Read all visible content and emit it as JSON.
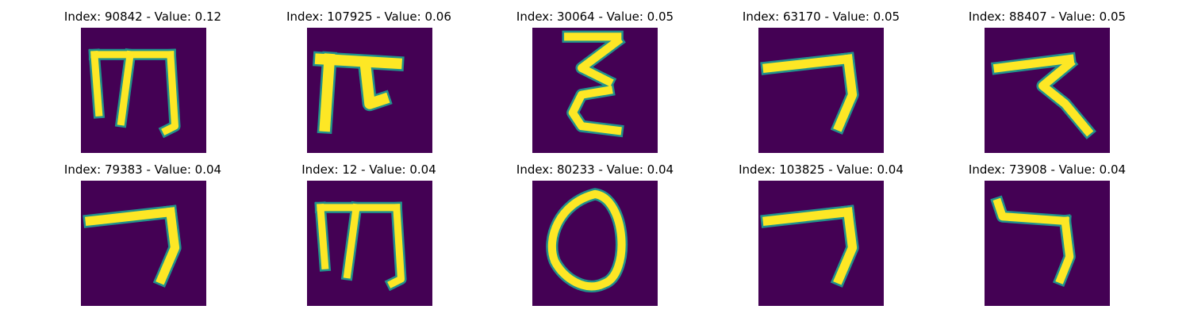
{
  "colors": {
    "background_cell": "#440154",
    "stroke_core": "#fde725",
    "stroke_edge": "#21918c"
  },
  "panels": [
    {
      "title": "Index: 90842 - Value: 0.12",
      "glyph": "glyph-m-shape"
    },
    {
      "title": "Index: 107925 - Value: 0.06",
      "glyph": "glyph-m-thick"
    },
    {
      "title": "Index: 30064 - Value: 0.05",
      "glyph": "glyph-z-stack"
    },
    {
      "title": "Index: 63170 - Value: 0.05",
      "glyph": "glyph-hook-right"
    },
    {
      "title": "Index: 88407 - Value: 0.05",
      "glyph": "glyph-z-wave"
    },
    {
      "title": "Index: 79383 - Value: 0.04",
      "glyph": "glyph-hook-right"
    },
    {
      "title": "Index: 12 - Value: 0.04",
      "glyph": "glyph-m-shape"
    },
    {
      "title": "Index: 80233 - Value: 0.04",
      "glyph": "glyph-ring"
    },
    {
      "title": "Index: 103825 - Value: 0.04",
      "glyph": "glyph-hook-right"
    },
    {
      "title": "Index: 73908 - Value: 0.04",
      "glyph": "glyph-hook-left"
    }
  ]
}
